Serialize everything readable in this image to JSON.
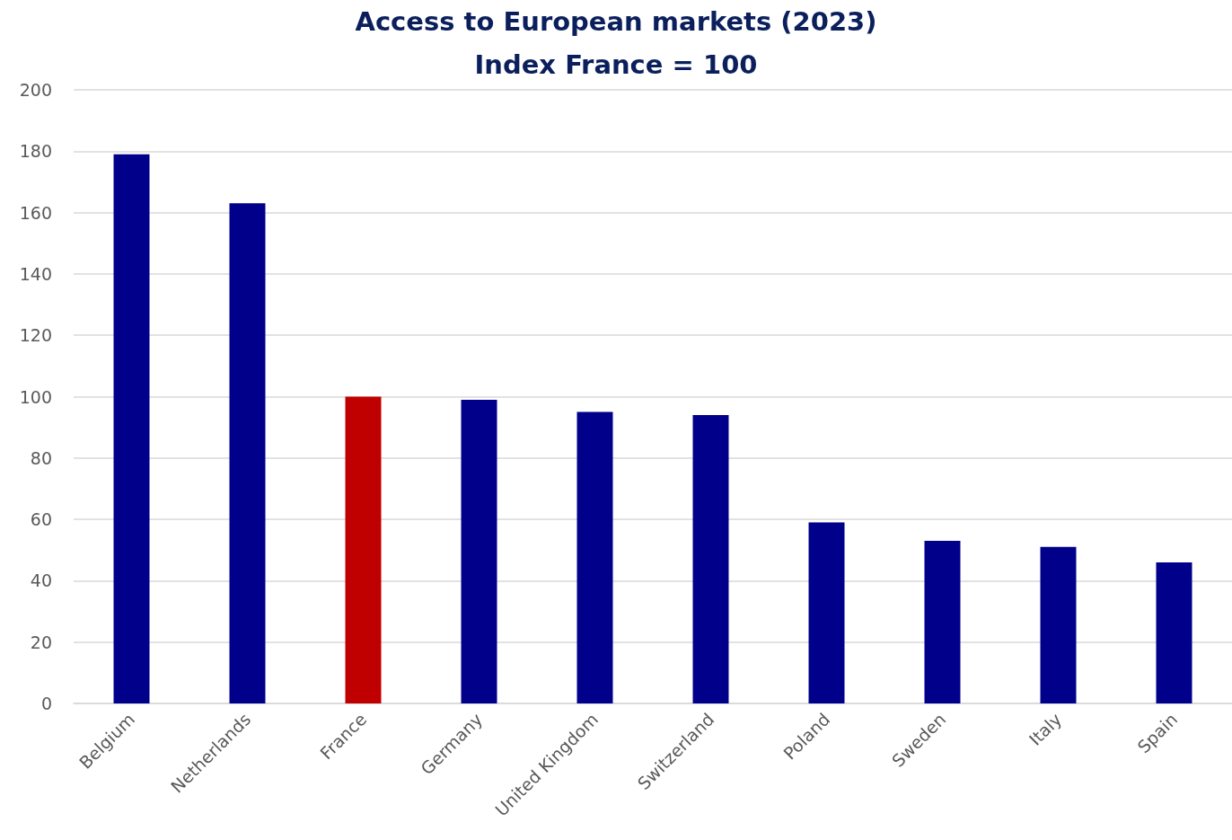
{
  "chart_data": {
    "type": "bar",
    "title": "Access to European markets (2023)",
    "subtitle": "Index France = 100",
    "categories": [
      "Belgium",
      "Netherlands",
      "France",
      "Germany",
      "United Kingdom",
      "Switzerland",
      "Poland",
      "Sweden",
      "Italy",
      "Spain"
    ],
    "values": [
      179,
      163,
      100,
      99,
      95,
      94,
      59,
      53,
      51,
      46
    ],
    "colors": [
      "#00008b",
      "#00008b",
      "#c00000",
      "#00008b",
      "#00008b",
      "#00008b",
      "#00008b",
      "#00008b",
      "#00008b",
      "#00008b"
    ],
    "ylim": [
      0,
      200
    ],
    "yticks": [
      0,
      20,
      40,
      60,
      80,
      100,
      120,
      140,
      160,
      180,
      200
    ],
    "grid": "y"
  }
}
